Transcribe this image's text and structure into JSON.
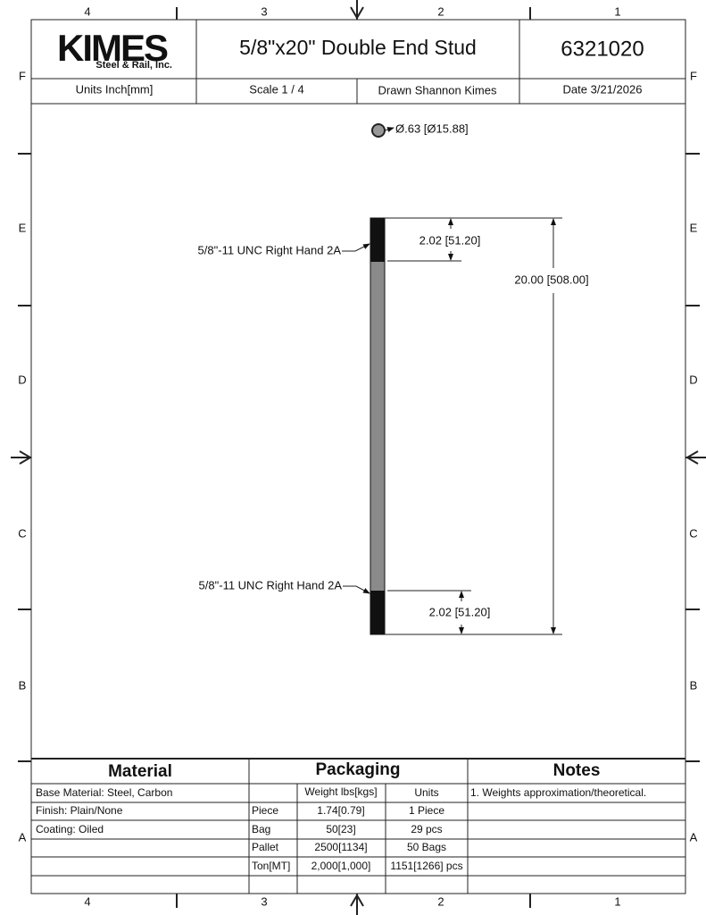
{
  "header": {
    "logo_main": "KIMES",
    "logo_sub": "Steel & Rail, Inc.",
    "title": "5/8\"x20\" Double End Stud",
    "part_number": "6321020",
    "units": "Units Inch[mm]",
    "scale": "Scale 1 / 4",
    "drawn": "Drawn Shannon Kimes",
    "date": "Date 3/21/2026"
  },
  "zones": {
    "columns": [
      "4",
      "3",
      "2",
      "1"
    ],
    "rows": [
      "F",
      "E",
      "D",
      "C",
      "B",
      "A"
    ]
  },
  "drawing": {
    "diameter_label": "Ø.63 [Ø15.88]",
    "thread_labels": [
      "5/8\"-11 UNC Right Hand 2A",
      "5/8\"-11 UNC Right Hand 2A"
    ],
    "thread_length_labels": [
      "2.02 [51.20]",
      "2.02 [51.20]"
    ],
    "overall_length": "20.00 [508.00]"
  },
  "table": {
    "material": {
      "title": "Material",
      "rows": [
        "Base Material: Steel, Carbon",
        "Finish: Plain/None",
        "Coating: Oiled"
      ]
    },
    "packaging": {
      "title": "Packaging",
      "headers": [
        "Weight lbs[kgs]",
        "Units"
      ],
      "rows": [
        [
          "Piece",
          "1.74[0.79]",
          "1 Piece"
        ],
        [
          "Bag",
          "50[23]",
          "29 pcs"
        ],
        [
          "Pallet",
          "2500[1134]",
          "50 Bags"
        ],
        [
          "Ton[MT]",
          "2,000[1,000]",
          "1151[1266] pcs"
        ]
      ]
    },
    "notes": {
      "title": "Notes",
      "rows": [
        "1. Weights approximation/theoretical."
      ]
    }
  }
}
